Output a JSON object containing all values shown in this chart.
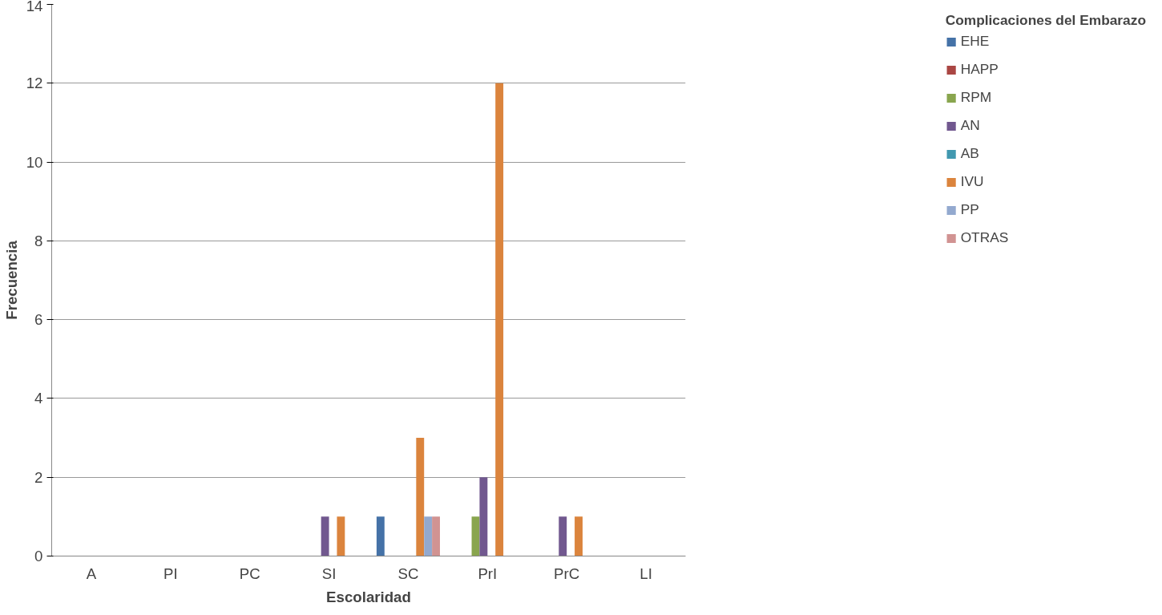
{
  "chart_data": {
    "type": "bar",
    "xlabel": "Escolaridad",
    "ylabel": "Frecuencia",
    "legend_title": "Complicaciones del Embarazo",
    "categories": [
      "A",
      "PI",
      "PC",
      "SI",
      "SC",
      "PrI",
      "PrC",
      "LI"
    ],
    "series": [
      {
        "name": "EHE",
        "color": "#4572a7",
        "values": [
          0,
          0,
          0,
          0,
          1,
          0,
          0,
          0
        ]
      },
      {
        "name": "HAPP",
        "color": "#aa4643",
        "values": [
          0,
          0,
          0,
          0,
          0,
          0,
          0,
          0
        ]
      },
      {
        "name": "RPM",
        "color": "#89a54e",
        "values": [
          0,
          0,
          0,
          0,
          0,
          1,
          0,
          0
        ]
      },
      {
        "name": "AN",
        "color": "#71588f",
        "values": [
          0,
          0,
          0,
          1,
          0,
          2,
          1,
          0
        ]
      },
      {
        "name": "AB",
        "color": "#4198af",
        "values": [
          0,
          0,
          0,
          0,
          0,
          0,
          0,
          0
        ]
      },
      {
        "name": "IVU",
        "color": "#db843d",
        "values": [
          0,
          0,
          0,
          1,
          3,
          12,
          1,
          0
        ]
      },
      {
        "name": "PP",
        "color": "#93a9cf",
        "values": [
          0,
          0,
          0,
          0,
          1,
          0,
          0,
          0
        ]
      },
      {
        "name": "OTRAS",
        "color": "#d19392",
        "values": [
          0,
          0,
          0,
          0,
          1,
          0,
          0,
          0
        ]
      }
    ],
    "ylim": [
      0,
      14
    ],
    "yticks": [
      0,
      2,
      4,
      6,
      8,
      10,
      12,
      14
    ],
    "grid": "y",
    "legend": "right"
  }
}
